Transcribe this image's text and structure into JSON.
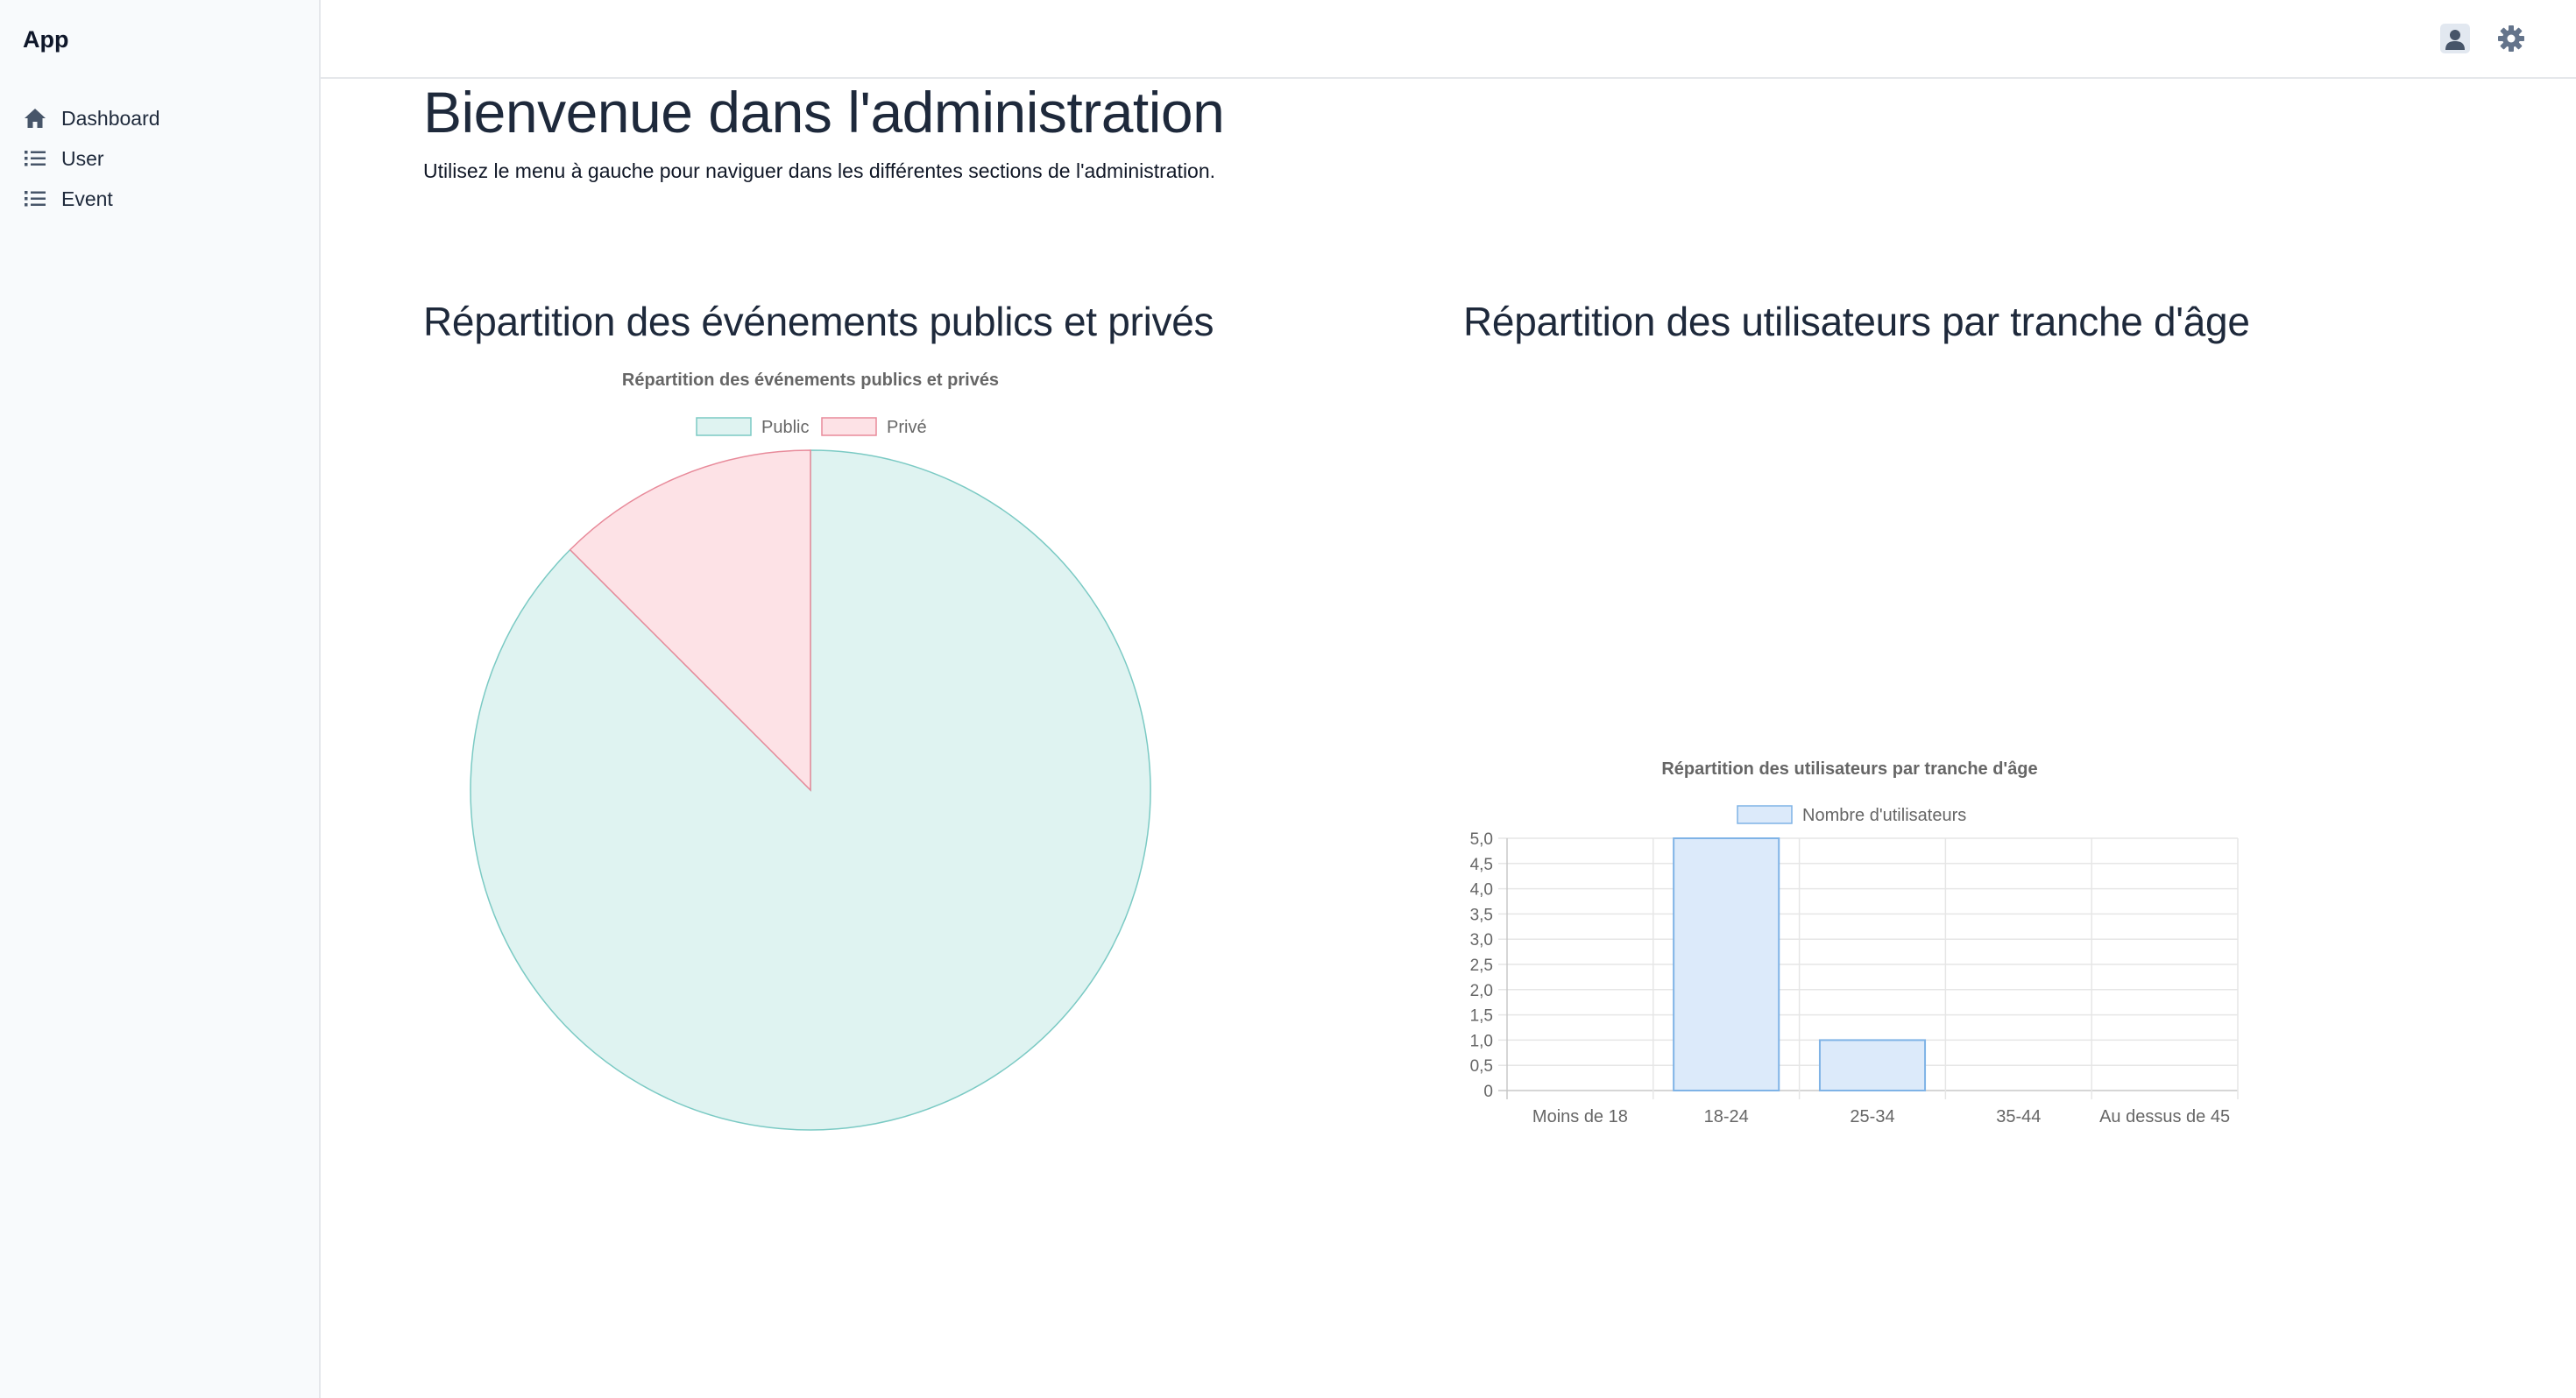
{
  "sidebar": {
    "app_title": "App",
    "items": [
      {
        "label": "Dashboard",
        "icon": "home-icon"
      },
      {
        "label": "User",
        "icon": "list-icon"
      },
      {
        "label": "Event",
        "icon": "list-icon"
      }
    ]
  },
  "topbar": {
    "icons": [
      "user-icon",
      "gear-icon"
    ]
  },
  "main": {
    "title": "Bienvenue dans l'administration",
    "subtitle": "Utilisez le menu à gauche pour naviguer dans les différentes sections de l'administration.",
    "sections": [
      {
        "title": "Répartition des événements publics et privés"
      },
      {
        "title": "Répartition des utilisateurs par tranche d'âge"
      }
    ]
  },
  "chart_data": [
    {
      "type": "pie",
      "title": "Répartition des événements publics et privés",
      "legend_position": "top",
      "categories": [
        "Public",
        "Privé"
      ],
      "values": [
        7,
        1
      ],
      "colors": {
        "fill": [
          "#dff3f1",
          "#fde2e6"
        ],
        "stroke": [
          "#7bcac4",
          "#e88a9a"
        ]
      }
    },
    {
      "type": "bar",
      "title": "Répartition des utilisateurs par tranche d'âge",
      "legend_position": "top",
      "categories": [
        "Moins de 18",
        "18-24",
        "25-34",
        "35-44",
        "Au dessus de 45"
      ],
      "series": [
        {
          "name": "Nombre d'utilisateurs",
          "values": [
            0,
            5,
            1,
            0,
            0
          ]
        }
      ],
      "ylim": [
        0,
        5
      ],
      "yticks": [
        "0",
        "0,5",
        "1,0",
        "1,5",
        "2,0",
        "2,5",
        "3,0",
        "3,5",
        "4,0",
        "4,5",
        "5,0"
      ],
      "grid": true,
      "colors": {
        "fill": "#dceafa",
        "stroke": "#7fb3e6"
      }
    }
  ]
}
